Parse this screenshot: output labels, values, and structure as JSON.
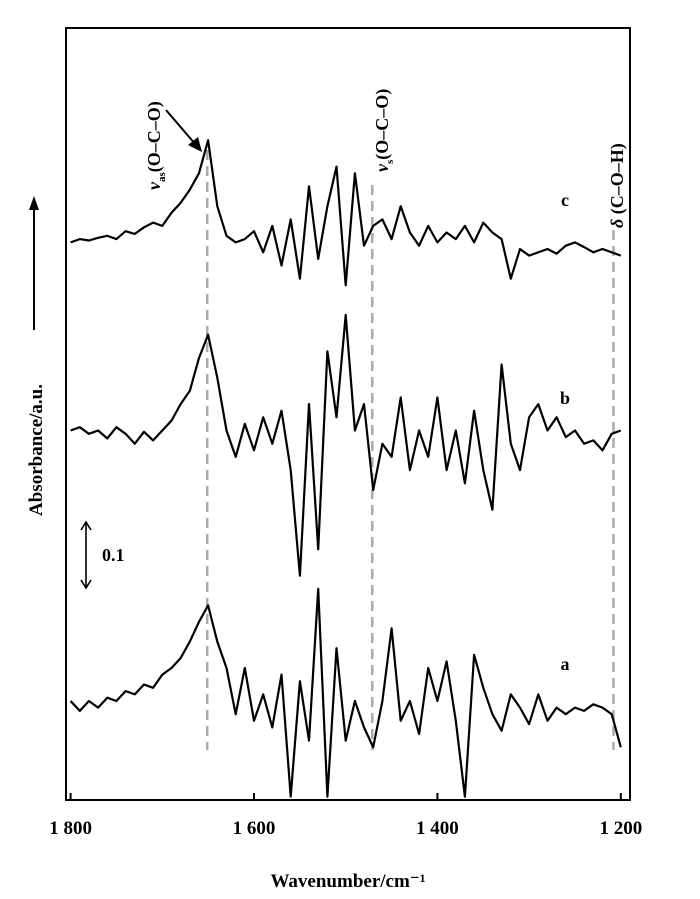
{
  "chart_data": {
    "type": "line",
    "x_label": "Wavenumber/cm⁻¹",
    "y_label": "Absorbance/a.u.",
    "xlim": [
      1805,
      1190
    ],
    "xticks": [
      {
        "value": 1800,
        "label": "1 800"
      },
      {
        "value": 1600,
        "label": "1 600"
      },
      {
        "value": 1400,
        "label": "1 400"
      },
      {
        "value": 1200,
        "label": "1 200"
      }
    ],
    "ylim": [
      0,
      1.17
    ],
    "scale_bar": 0.1,
    "x": [
      1800,
      1790,
      1780,
      1770,
      1760,
      1750,
      1740,
      1730,
      1720,
      1710,
      1700,
      1690,
      1680,
      1670,
      1660,
      1650,
      1640,
      1630,
      1620,
      1610,
      1600,
      1590,
      1580,
      1570,
      1560,
      1550,
      1540,
      1530,
      1520,
      1510,
      1500,
      1490,
      1480,
      1470,
      1460,
      1450,
      1440,
      1430,
      1420,
      1410,
      1400,
      1390,
      1380,
      1370,
      1360,
      1350,
      1340,
      1330,
      1320,
      1310,
      1300,
      1290,
      1280,
      1270,
      1260,
      1250,
      1240,
      1230,
      1220,
      1210,
      1200
    ],
    "series": [
      {
        "name": "a",
        "color": "#000000",
        "values": [
          0.15,
          0.135,
          0.15,
          0.14,
          0.155,
          0.15,
          0.165,
          0.16,
          0.175,
          0.17,
          0.19,
          0.2,
          0.215,
          0.24,
          0.27,
          0.295,
          0.24,
          0.2,
          0.13,
          0.2,
          0.12,
          0.16,
          0.11,
          0.19,
          0.005,
          0.18,
          0.09,
          0.32,
          0.005,
          0.23,
          0.09,
          0.15,
          0.11,
          0.08,
          0.15,
          0.26,
          0.12,
          0.15,
          0.1,
          0.2,
          0.15,
          0.21,
          0.12,
          0.005,
          0.22,
          0.17,
          0.13,
          0.105,
          0.16,
          0.14,
          0.115,
          0.16,
          0.12,
          0.14,
          0.13,
          0.14,
          0.135,
          0.145,
          0.14,
          0.13,
          0.08
        ]
      },
      {
        "name": "b",
        "color": "#000000",
        "values": [
          0.56,
          0.565,
          0.555,
          0.56,
          0.548,
          0.565,
          0.555,
          0.54,
          0.558,
          0.545,
          0.56,
          0.575,
          0.6,
          0.62,
          0.67,
          0.705,
          0.64,
          0.56,
          0.52,
          0.57,
          0.53,
          0.58,
          0.54,
          0.59,
          0.5,
          0.34,
          0.6,
          0.38,
          0.68,
          0.58,
          0.735,
          0.56,
          0.6,
          0.47,
          0.54,
          0.52,
          0.61,
          0.5,
          0.56,
          0.52,
          0.61,
          0.5,
          0.56,
          0.48,
          0.59,
          0.5,
          0.44,
          0.66,
          0.54,
          0.5,
          0.58,
          0.6,
          0.56,
          0.58,
          0.55,
          0.56,
          0.54,
          0.545,
          0.53,
          0.555,
          0.56
        ]
      },
      {
        "name": "c",
        "color": "#000000",
        "values": [
          0.845,
          0.85,
          0.848,
          0.852,
          0.855,
          0.85,
          0.862,
          0.858,
          0.868,
          0.875,
          0.87,
          0.89,
          0.905,
          0.925,
          0.95,
          1.0,
          0.9,
          0.855,
          0.845,
          0.85,
          0.862,
          0.83,
          0.87,
          0.81,
          0.88,
          0.79,
          0.93,
          0.82,
          0.9,
          0.96,
          0.78,
          0.95,
          0.84,
          0.87,
          0.88,
          0.85,
          0.9,
          0.86,
          0.84,
          0.87,
          0.845,
          0.86,
          0.85,
          0.87,
          0.845,
          0.875,
          0.86,
          0.85,
          0.79,
          0.835,
          0.825,
          0.83,
          0.835,
          0.828,
          0.84,
          0.845,
          0.838,
          0.83,
          0.835,
          0.83,
          0.825
        ]
      }
    ],
    "annotations": [
      {
        "symbol": "ν",
        "sub": "as",
        "text": "(O–C–O)",
        "x": 1651
      },
      {
        "symbol": "ν",
        "sub": "s",
        "text": "(O–C–O)",
        "x": 1471
      },
      {
        "symbol": "δ",
        "text": " (C–O–H)",
        "x": 1208
      }
    ]
  }
}
